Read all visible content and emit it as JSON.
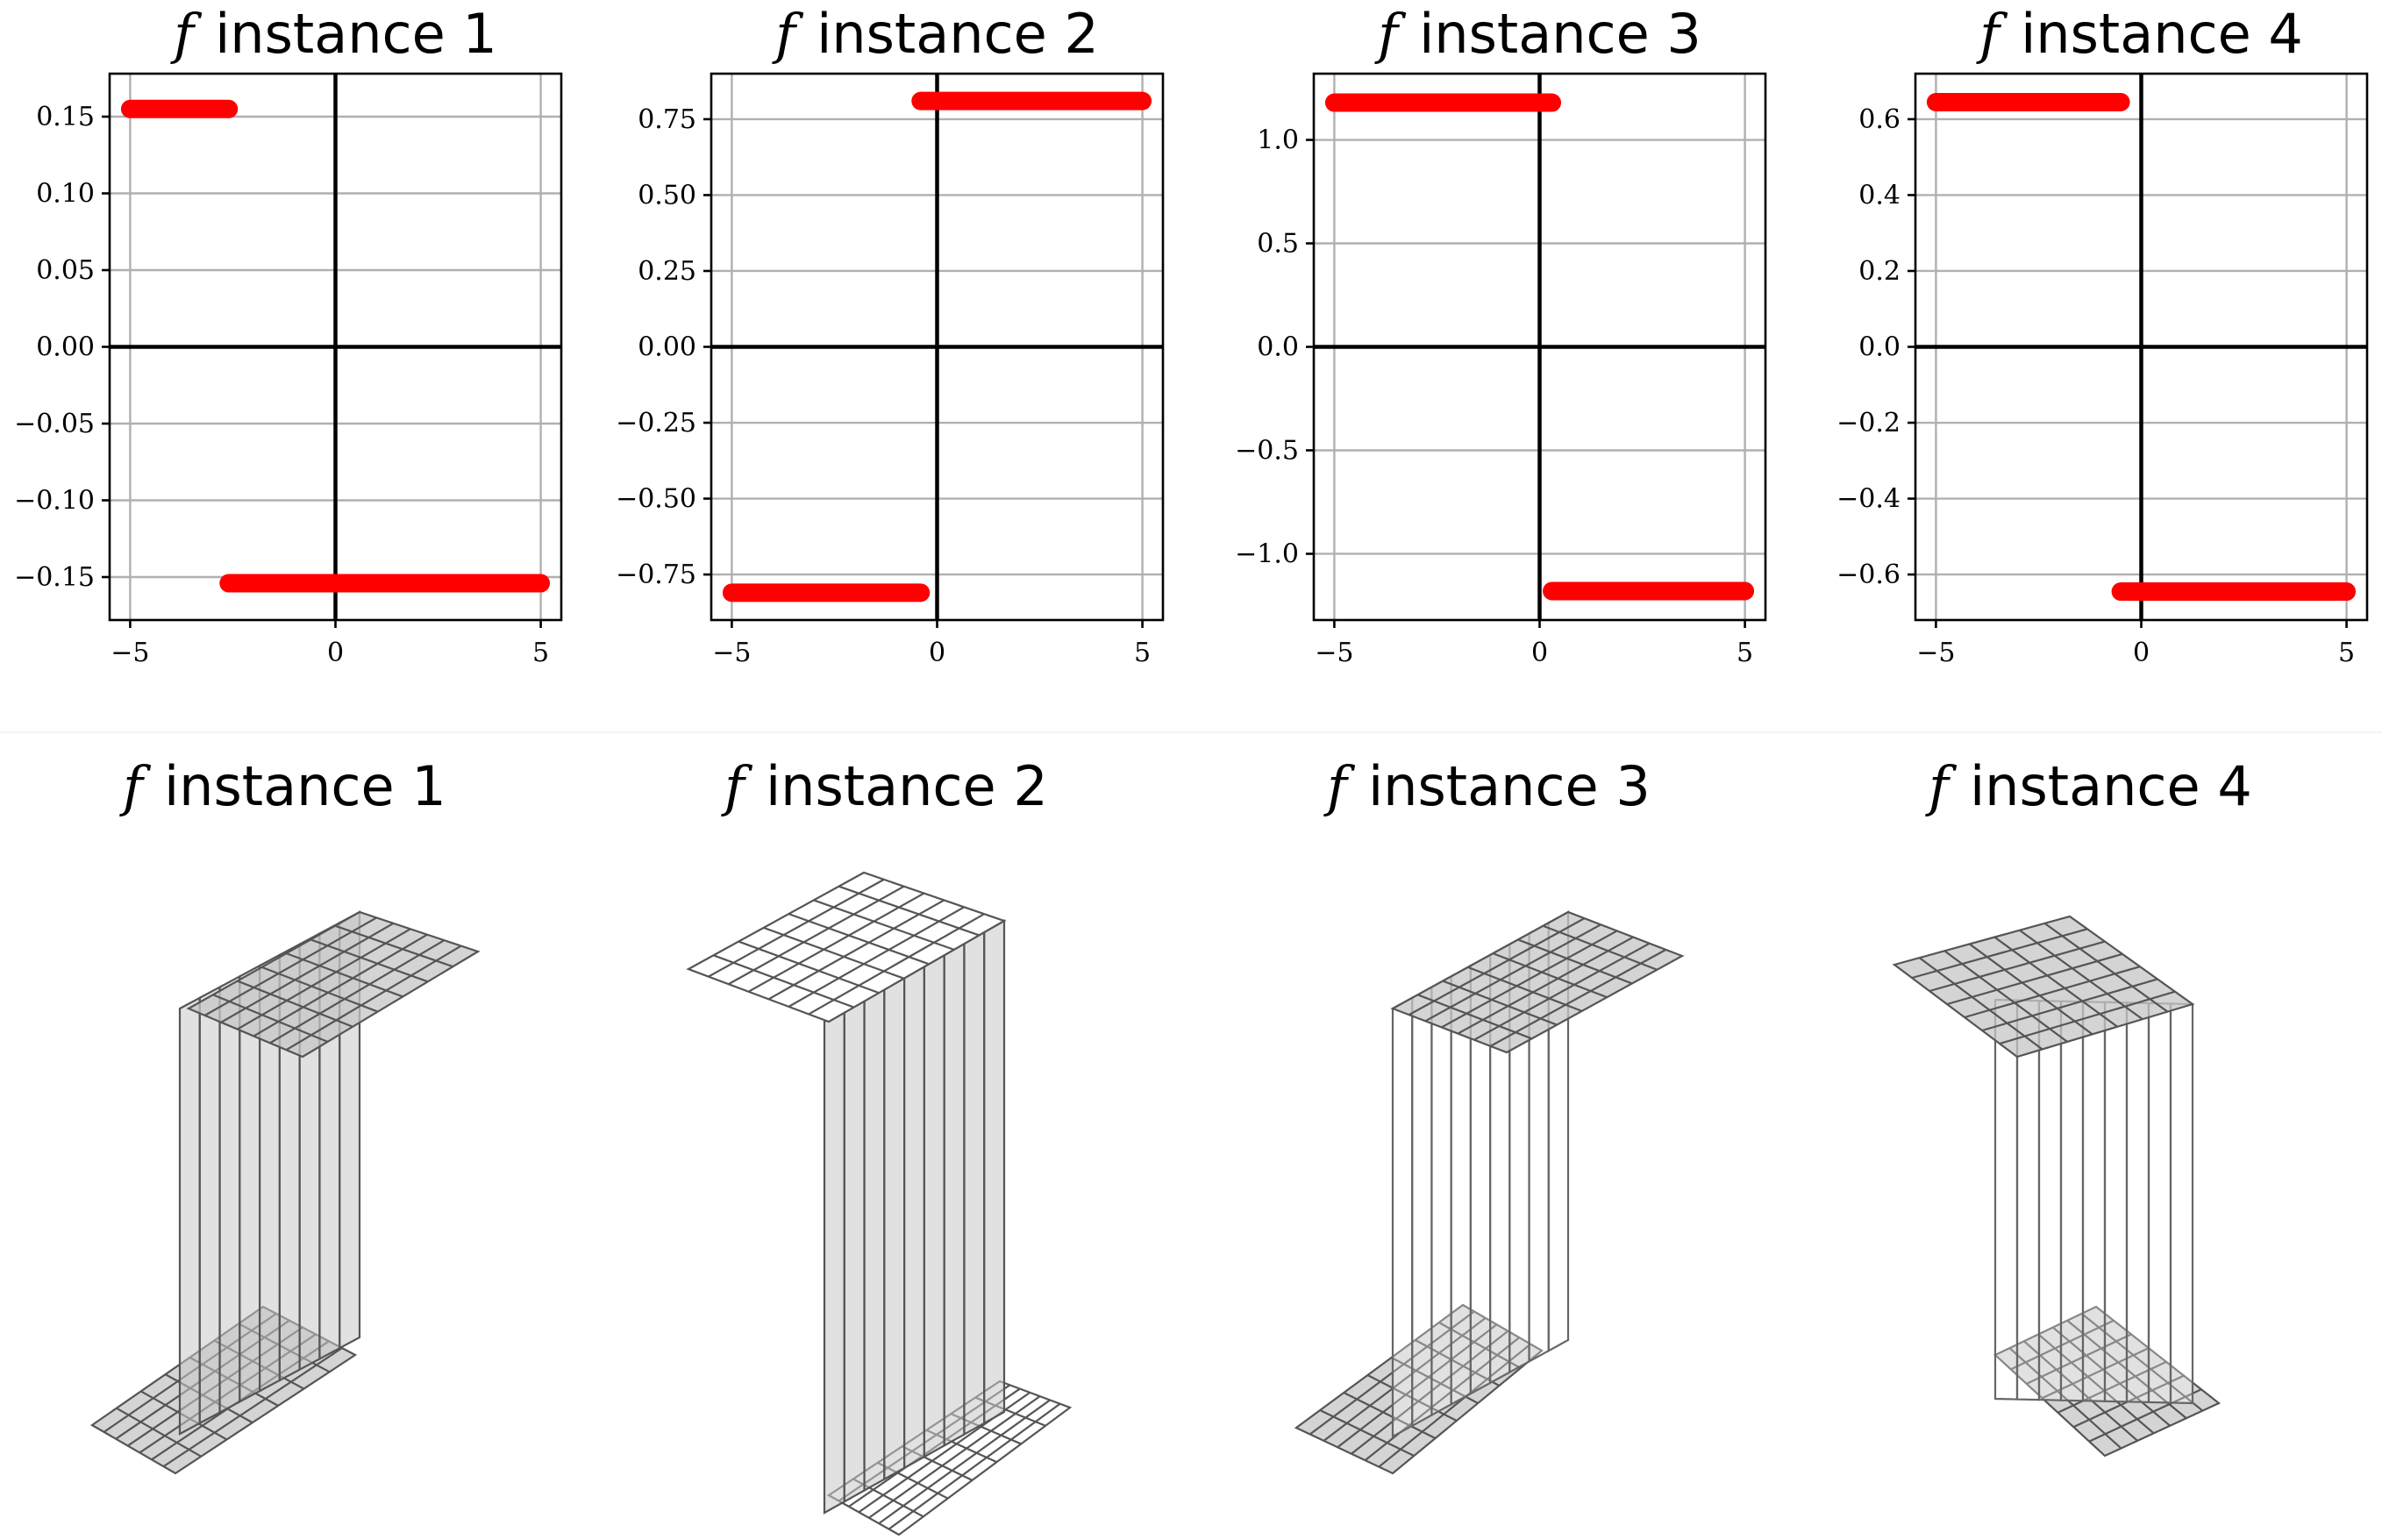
{
  "chart_data": [
    {
      "type": "line",
      "title": "f instance 1",
      "title_symbol": "f",
      "title_text": "instance 1",
      "xlim": [
        -5.5,
        5.5
      ],
      "ylim": [
        -0.178,
        0.178
      ],
      "xticks": [
        -5,
        0,
        5
      ],
      "xtick_labels": [
        "−5",
        "0",
        "5"
      ],
      "yticks": [
        0.15,
        0.1,
        0.05,
        0.0,
        -0.05,
        -0.1,
        -0.15
      ],
      "ytick_labels": [
        "0.15",
        "0.10",
        "0.05",
        "0.00",
        "−0.05",
        "−0.10",
        "−0.15"
      ],
      "grid": true,
      "color": "#ff0000",
      "segments": [
        {
          "x": [
            -5,
            -2.6
          ],
          "y": 0.155
        },
        {
          "x": [
            -2.6,
            5
          ],
          "y": -0.154
        }
      ]
    },
    {
      "type": "line",
      "title": "f instance 2",
      "title_symbol": "f",
      "title_text": "instance 2",
      "xlim": [
        -5.5,
        5.5
      ],
      "ylim": [
        -0.9,
        0.9
      ],
      "xticks": [
        -5,
        0,
        5
      ],
      "xtick_labels": [
        "−5",
        "0",
        "5"
      ],
      "yticks": [
        0.75,
        0.5,
        0.25,
        0.0,
        -0.25,
        -0.5,
        -0.75
      ],
      "ytick_labels": [
        "0.75",
        "0.50",
        "0.25",
        "0.00",
        "−0.25",
        "−0.50",
        "−0.75"
      ],
      "grid": true,
      "color": "#ff0000",
      "segments": [
        {
          "x": [
            -5,
            -0.4
          ],
          "y": -0.81
        },
        {
          "x": [
            -0.4,
            5
          ],
          "y": 0.81
        }
      ]
    },
    {
      "type": "line",
      "title": "f instance 3",
      "title_symbol": "f",
      "title_text": "instance 3",
      "xlim": [
        -5.5,
        5.5
      ],
      "ylim": [
        -1.32,
        1.32
      ],
      "xticks": [
        -5,
        0,
        5
      ],
      "xtick_labels": [
        "−5",
        "0",
        "5"
      ],
      "yticks": [
        1.0,
        0.5,
        0.0,
        -0.5,
        -1.0
      ],
      "ytick_labels": [
        "1.0",
        "0.5",
        "0.0",
        "−0.5",
        "−1.0"
      ],
      "grid": true,
      "color": "#ff0000",
      "segments": [
        {
          "x": [
            -5,
            0.3
          ],
          "y": 1.18
        },
        {
          "x": [
            0.3,
            5
          ],
          "y": -1.18
        }
      ]
    },
    {
      "type": "line",
      "title": "f instance 4",
      "title_symbol": "f",
      "title_text": "instance 4",
      "xlim": [
        -5.5,
        5.5
      ],
      "ylim": [
        -0.72,
        0.72
      ],
      "xticks": [
        -5,
        0,
        5
      ],
      "xtick_labels": [
        "−5",
        "0",
        "5"
      ],
      "yticks": [
        0.6,
        0.4,
        0.2,
        0.0,
        -0.2,
        -0.4,
        -0.6
      ],
      "ytick_labels": [
        "0.6",
        "0.4",
        "0.2",
        "0.0",
        "−0.2",
        "−0.4",
        "−0.6"
      ],
      "grid": true,
      "color": "#ff0000",
      "segments": [
        {
          "x": [
            -5,
            -0.5
          ],
          "y": 0.645
        },
        {
          "x": [
            -0.5,
            5
          ],
          "y": -0.645
        }
      ]
    }
  ],
  "surfaces": [
    {
      "title_symbol": "f",
      "title_text": "instance 1",
      "kind": "step surface, 3D wireframe"
    },
    {
      "title_symbol": "f",
      "title_text": "instance 2",
      "kind": "step surface, 3D wireframe"
    },
    {
      "title_symbol": "f",
      "title_text": "instance 3",
      "kind": "step surface, 3D wireframe"
    },
    {
      "title_symbol": "f",
      "title_text": "instance 4",
      "kind": "step surface, 3D wireframe"
    }
  ]
}
